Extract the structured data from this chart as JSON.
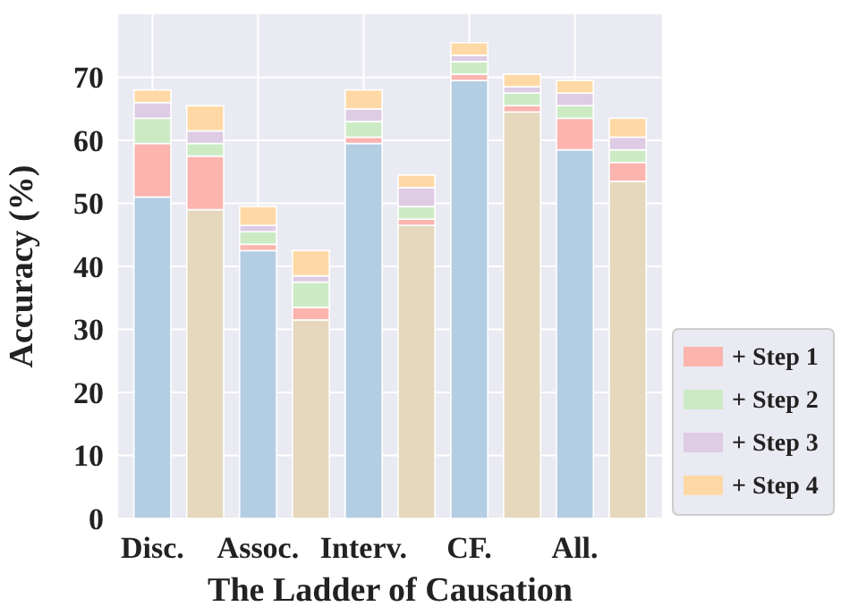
{
  "chart_data": {
    "type": "bar",
    "stacked": true,
    "xlabel": "The Ladder of Causation",
    "ylabel": "Accuracy (%)",
    "categories": [
      "Disc.",
      null,
      "Assoc.",
      null,
      "Interv.",
      null,
      "CF.",
      null,
      "All.",
      null
    ],
    "ylim": [
      0,
      80
    ],
    "yticks": [
      0,
      10,
      20,
      30,
      40,
      50,
      60,
      70
    ],
    "grid": true,
    "legend": "right",
    "series": [
      {
        "colors": [
          "#b3cde3",
          "#e5d8bd",
          "#b3cde3",
          "#e5d8bd",
          "#b3cde3",
          "#e5d8bd",
          "#b3cde3",
          "#e5d8bd",
          "#b3cde3",
          "#e5d8bd"
        ],
        "values": [
          51,
          49,
          42.5,
          31.5,
          59.5,
          46.5,
          69.5,
          64.5,
          58.5,
          53.5
        ]
      },
      {
        "name": "+ Step 1",
        "color": "#fbb4ae",
        "values": [
          8.5,
          8.5,
          1,
          2,
          1,
          1,
          1,
          1,
          5,
          3
        ]
      },
      {
        "name": "+ Step 2",
        "color": "#ccebc5",
        "values": [
          4,
          2,
          2,
          4,
          2.5,
          2,
          2,
          2,
          2,
          2
        ]
      },
      {
        "name": "+ Step 3",
        "color": "#decbe4",
        "values": [
          2.5,
          2,
          1,
          1,
          2,
          3,
          1,
          1,
          2,
          2
        ]
      },
      {
        "name": "+ Step 4",
        "color": "#fed9a6",
        "values": [
          2,
          4,
          3,
          4,
          3,
          2,
          2,
          2,
          2,
          3
        ]
      }
    ]
  }
}
